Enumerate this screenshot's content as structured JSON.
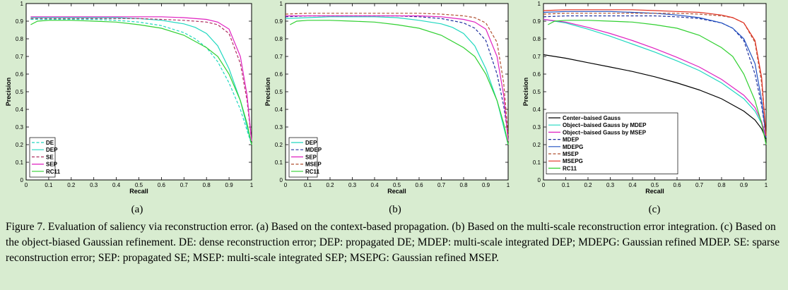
{
  "caption": "Figure 7. Evaluation of saliency via reconstruction error. (a) Based on the context-based propagation. (b) Based on the multi-scale reconstruction error integration. (c) Based on the object-biased Gaussian refinement. DE: dense reconstruction error; DEP: propagated DE; MDEP: multi-scale integrated DEP; MDEPG: Gaussian refined MDEP. SE: sparse reconstruction error; SEP: propagated SE; MSEP: multi-scale integrated SEP; MSEPG: Gaussian refined MSEP.",
  "subfigure_labels": [
    "(a)",
    "(b)",
    "(c)"
  ],
  "chart_data": [
    {
      "type": "line",
      "panel_label": "(a)",
      "xlabel": "Recall",
      "ylabel": "Precision",
      "xlim": [
        0,
        1
      ],
      "ylim": [
        0,
        1
      ],
      "xticks": [
        "0",
        "0.1",
        "0.2",
        "0.3",
        "0.4",
        "0.5",
        "0.6",
        "0.7",
        "0.8",
        "0.9",
        "1"
      ],
      "yticks": [
        "0",
        "0.1",
        "0.2",
        "0.3",
        "0.4",
        "0.5",
        "0.6",
        "0.7",
        "0.8",
        "0.9",
        "1"
      ],
      "grid": false,
      "legend_position": "bottom-left",
      "series": [
        {
          "name": "DE",
          "color": "#20d8c0",
          "dash": "dashed",
          "x": [
            0.02,
            0.1,
            0.2,
            0.3,
            0.4,
            0.5,
            0.6,
            0.7,
            0.75,
            0.8,
            0.85,
            0.9,
            0.95,
            0.98,
            1.0
          ],
          "y": [
            0.91,
            0.91,
            0.91,
            0.91,
            0.905,
            0.895,
            0.875,
            0.835,
            0.8,
            0.75,
            0.67,
            0.55,
            0.4,
            0.28,
            0.2
          ]
        },
        {
          "name": "DEP",
          "color": "#20d8c0",
          "dash": "solid",
          "x": [
            0.02,
            0.1,
            0.2,
            0.3,
            0.4,
            0.5,
            0.6,
            0.7,
            0.75,
            0.8,
            0.85,
            0.9,
            0.95,
            0.98,
            1.0
          ],
          "y": [
            0.92,
            0.92,
            0.92,
            0.92,
            0.92,
            0.915,
            0.905,
            0.885,
            0.865,
            0.83,
            0.76,
            0.63,
            0.45,
            0.3,
            0.2
          ]
        },
        {
          "name": "SE",
          "color": "#b03060",
          "dash": "dashed",
          "x": [
            0.02,
            0.1,
            0.2,
            0.3,
            0.4,
            0.5,
            0.6,
            0.7,
            0.8,
            0.85,
            0.9,
            0.95,
            0.98,
            1.0
          ],
          "y": [
            0.915,
            0.915,
            0.915,
            0.915,
            0.915,
            0.915,
            0.91,
            0.905,
            0.895,
            0.88,
            0.83,
            0.66,
            0.45,
            0.22
          ]
        },
        {
          "name": "SEP",
          "color": "#e020c0",
          "dash": "solid",
          "x": [
            0.02,
            0.1,
            0.2,
            0.3,
            0.4,
            0.5,
            0.6,
            0.7,
            0.8,
            0.85,
            0.9,
            0.95,
            0.98,
            1.0
          ],
          "y": [
            0.925,
            0.925,
            0.925,
            0.925,
            0.925,
            0.925,
            0.925,
            0.92,
            0.91,
            0.895,
            0.855,
            0.7,
            0.48,
            0.22
          ]
        },
        {
          "name": "RC11",
          "color": "#30d030",
          "dash": "solid",
          "x": [
            0.02,
            0.05,
            0.1,
            0.2,
            0.3,
            0.4,
            0.5,
            0.6,
            0.7,
            0.8,
            0.85,
            0.9,
            0.95,
            0.98,
            1.0
          ],
          "y": [
            0.88,
            0.9,
            0.905,
            0.905,
            0.9,
            0.895,
            0.88,
            0.86,
            0.82,
            0.75,
            0.7,
            0.6,
            0.45,
            0.32,
            0.2
          ]
        }
      ]
    },
    {
      "type": "line",
      "panel_label": "(b)",
      "xlabel": "Recall",
      "ylabel": "Precision",
      "xlim": [
        0,
        1
      ],
      "ylim": [
        0,
        1
      ],
      "xticks": [
        "0",
        "0.1",
        "0.2",
        "0.3",
        "0.4",
        "0.5",
        "0.6",
        "0.7",
        "0.8",
        "0.9",
        "1"
      ],
      "yticks": [
        "0",
        "0.1",
        "0.2",
        "0.3",
        "0.4",
        "0.5",
        "0.6",
        "0.7",
        "0.8",
        "0.9",
        "1"
      ],
      "grid": false,
      "legend_position": "bottom-left",
      "series": [
        {
          "name": "DEP",
          "color": "#20d8c0",
          "dash": "solid",
          "x": [
            0.0,
            0.1,
            0.2,
            0.3,
            0.4,
            0.5,
            0.6,
            0.7,
            0.75,
            0.8,
            0.85,
            0.9,
            0.95,
            0.98,
            1.0
          ],
          "y": [
            0.915,
            0.92,
            0.925,
            0.925,
            0.925,
            0.92,
            0.905,
            0.885,
            0.865,
            0.83,
            0.76,
            0.63,
            0.45,
            0.3,
            0.2
          ]
        },
        {
          "name": "MDEP",
          "color": "#2030a0",
          "dash": "dashed",
          "x": [
            0.0,
            0.1,
            0.2,
            0.3,
            0.4,
            0.5,
            0.6,
            0.7,
            0.8,
            0.85,
            0.9,
            0.95,
            0.98,
            1.0
          ],
          "y": [
            0.925,
            0.93,
            0.93,
            0.93,
            0.93,
            0.93,
            0.925,
            0.915,
            0.89,
            0.86,
            0.79,
            0.6,
            0.42,
            0.25
          ]
        },
        {
          "name": "SEP",
          "color": "#e020c0",
          "dash": "solid",
          "x": [
            0.0,
            0.1,
            0.2,
            0.3,
            0.4,
            0.5,
            0.6,
            0.7,
            0.8,
            0.85,
            0.9,
            0.95,
            0.98,
            1.0
          ],
          "y": [
            0.93,
            0.93,
            0.93,
            0.93,
            0.93,
            0.93,
            0.93,
            0.925,
            0.91,
            0.895,
            0.855,
            0.7,
            0.48,
            0.22
          ]
        },
        {
          "name": "MSEP",
          "color": "#b05030",
          "dash": "dashed",
          "x": [
            0.0,
            0.1,
            0.2,
            0.3,
            0.4,
            0.5,
            0.6,
            0.7,
            0.8,
            0.85,
            0.9,
            0.95,
            0.98,
            1.0
          ],
          "y": [
            0.94,
            0.945,
            0.945,
            0.945,
            0.945,
            0.945,
            0.945,
            0.94,
            0.93,
            0.92,
            0.89,
            0.78,
            0.55,
            0.25
          ]
        },
        {
          "name": "RC11",
          "color": "#30d030",
          "dash": "solid",
          "x": [
            0.02,
            0.05,
            0.1,
            0.2,
            0.3,
            0.4,
            0.5,
            0.6,
            0.7,
            0.8,
            0.85,
            0.9,
            0.95,
            0.98,
            1.0
          ],
          "y": [
            0.88,
            0.9,
            0.905,
            0.905,
            0.9,
            0.895,
            0.88,
            0.86,
            0.82,
            0.75,
            0.7,
            0.6,
            0.45,
            0.32,
            0.2
          ]
        }
      ]
    },
    {
      "type": "line",
      "panel_label": "(c)",
      "xlabel": "Recall",
      "ylabel": "Precision",
      "xlim": [
        0,
        1
      ],
      "ylim": [
        0,
        1
      ],
      "xticks": [
        "0",
        "0.1",
        "0.2",
        "0.3",
        "0.4",
        "0.5",
        "0.6",
        "0.7",
        "0.8",
        "0.9",
        "1"
      ],
      "yticks": [
        "0",
        "0.1",
        "0.2",
        "0.3",
        "0.4",
        "0.5",
        "0.6",
        "0.7",
        "0.8",
        "0.9",
        "1"
      ],
      "grid": false,
      "legend_position": "bottom-left",
      "series": [
        {
          "name": "Center−baised Gauss",
          "color": "#000000",
          "dash": "solid",
          "x": [
            0.0,
            0.1,
            0.2,
            0.3,
            0.4,
            0.5,
            0.6,
            0.7,
            0.8,
            0.9,
            0.95,
            0.98,
            1.0
          ],
          "y": [
            0.71,
            0.69,
            0.665,
            0.64,
            0.615,
            0.585,
            0.55,
            0.51,
            0.46,
            0.39,
            0.34,
            0.29,
            0.23
          ]
        },
        {
          "name": "Object−baised Gauss by MDEP",
          "color": "#20d8c0",
          "dash": "solid",
          "x": [
            0.0,
            0.1,
            0.2,
            0.3,
            0.4,
            0.5,
            0.6,
            0.7,
            0.8,
            0.9,
            0.95,
            0.98,
            1.0
          ],
          "y": [
            0.91,
            0.89,
            0.855,
            0.815,
            0.77,
            0.725,
            0.675,
            0.62,
            0.55,
            0.46,
            0.39,
            0.32,
            0.24
          ]
        },
        {
          "name": "Object−baised Gauss by MSEP",
          "color": "#e020c0",
          "dash": "solid",
          "x": [
            0.0,
            0.1,
            0.2,
            0.3,
            0.4,
            0.5,
            0.6,
            0.7,
            0.8,
            0.9,
            0.95,
            0.98,
            1.0
          ],
          "y": [
            0.91,
            0.895,
            0.865,
            0.83,
            0.79,
            0.745,
            0.695,
            0.64,
            0.57,
            0.48,
            0.41,
            0.33,
            0.24
          ]
        },
        {
          "name": "MDEP",
          "color": "#2030a0",
          "dash": "dashed",
          "x": [
            0.0,
            0.1,
            0.2,
            0.3,
            0.4,
            0.5,
            0.6,
            0.7,
            0.8,
            0.85,
            0.9,
            0.95,
            0.98,
            1.0
          ],
          "y": [
            0.925,
            0.93,
            0.93,
            0.93,
            0.93,
            0.93,
            0.925,
            0.915,
            0.89,
            0.86,
            0.79,
            0.6,
            0.42,
            0.25
          ]
        },
        {
          "name": "MDEPG",
          "color": "#2050c0",
          "dash": "solid",
          "x": [
            0.0,
            0.1,
            0.2,
            0.3,
            0.4,
            0.5,
            0.6,
            0.7,
            0.8,
            0.85,
            0.9,
            0.95,
            0.98,
            1.0
          ],
          "y": [
            0.95,
            0.955,
            0.955,
            0.955,
            0.95,
            0.945,
            0.935,
            0.92,
            0.89,
            0.86,
            0.8,
            0.66,
            0.45,
            0.24
          ]
        },
        {
          "name": "MSEP",
          "color": "#b05030",
          "dash": "dashed",
          "x": [
            0.0,
            0.1,
            0.2,
            0.3,
            0.4,
            0.5,
            0.6,
            0.7,
            0.8,
            0.85,
            0.9,
            0.95,
            0.98,
            1.0
          ],
          "y": [
            0.94,
            0.945,
            0.945,
            0.945,
            0.945,
            0.945,
            0.945,
            0.94,
            0.93,
            0.92,
            0.89,
            0.78,
            0.55,
            0.25
          ]
        },
        {
          "name": "MSEPG",
          "color": "#e03020",
          "dash": "solid",
          "x": [
            0.0,
            0.1,
            0.2,
            0.3,
            0.4,
            0.5,
            0.6,
            0.7,
            0.8,
            0.85,
            0.9,
            0.95,
            0.98,
            1.0
          ],
          "y": [
            0.96,
            0.965,
            0.965,
            0.965,
            0.965,
            0.96,
            0.955,
            0.95,
            0.935,
            0.92,
            0.89,
            0.79,
            0.58,
            0.25
          ]
        },
        {
          "name": "RC11",
          "color": "#30d030",
          "dash": "solid",
          "x": [
            0.02,
            0.05,
            0.1,
            0.2,
            0.3,
            0.4,
            0.5,
            0.6,
            0.7,
            0.8,
            0.85,
            0.9,
            0.95,
            0.98,
            1.0
          ],
          "y": [
            0.88,
            0.9,
            0.905,
            0.905,
            0.9,
            0.895,
            0.88,
            0.86,
            0.82,
            0.75,
            0.7,
            0.6,
            0.45,
            0.32,
            0.2
          ]
        }
      ]
    }
  ]
}
